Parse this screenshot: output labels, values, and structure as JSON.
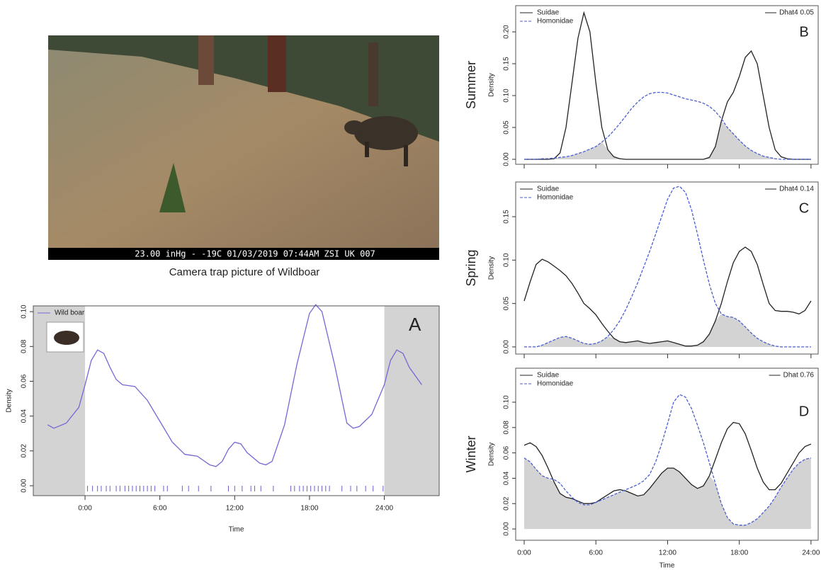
{
  "photo": {
    "overlay": "23.00 inHg - -19C  01/03/2019  07:44AM  ZSI UK 007",
    "caption": "Camera trap picture of Wildboar"
  },
  "chart_data": [
    {
      "type": "line",
      "panel": "A",
      "xlabel": "Time",
      "ylabel": "Density",
      "shade_outside": true,
      "xlim": [
        -4.15,
        28.4
      ],
      "ylim": [
        -0.0057,
        0.1033
      ],
      "xticks": [
        {
          "value": 0,
          "label": "0:00"
        },
        {
          "value": 6,
          "label": "6:00"
        },
        {
          "value": 12,
          "label": "12:00"
        },
        {
          "value": 18,
          "label": "18:00"
        },
        {
          "value": 24,
          "label": "24:00"
        }
      ],
      "yticks": [
        {
          "value": 0,
          "label": "0.00"
        },
        {
          "value": 0.02,
          "label": "0.02"
        },
        {
          "value": 0.04,
          "label": "0.04"
        },
        {
          "value": 0.06,
          "label": "0.06"
        },
        {
          "value": 0.08,
          "label": "0.08"
        },
        {
          "value": 0.1,
          "label": "0.10"
        }
      ],
      "x": [
        -3,
        -2.5,
        -1.5,
        -0.5,
        0,
        0.5,
        1,
        1.5,
        2,
        2.5,
        3,
        4,
        5,
        6,
        7,
        8,
        9,
        10,
        10.5,
        11,
        11.5,
        12,
        12.5,
        13,
        14,
        14.5,
        15,
        16,
        17,
        18,
        18.5,
        19,
        20,
        21,
        21.5,
        22,
        23,
        24,
        24.5,
        25,
        25.5,
        26,
        27
      ],
      "series": [
        {
          "name": "Wild boar",
          "color": "#7468d4",
          "linestyle": "solid",
          "values": [
            0.035,
            0.033,
            0.036,
            0.045,
            0.058,
            0.072,
            0.078,
            0.076,
            0.068,
            0.061,
            0.058,
            0.057,
            0.049,
            0.037,
            0.025,
            0.018,
            0.017,
            0.012,
            0.011,
            0.014,
            0.021,
            0.025,
            0.024,
            0.019,
            0.013,
            0.012,
            0.014,
            0.035,
            0.07,
            0.099,
            0.104,
            0.1,
            0.07,
            0.036,
            0.033,
            0.034,
            0.041,
            0.058,
            0.072,
            0.078,
            0.076,
            0.068,
            0.058
          ]
        }
      ],
      "rug": [
        0.2,
        0.6,
        1.0,
        1.3,
        1.7,
        2.0,
        2.5,
        2.8,
        3.2,
        3.5,
        3.8,
        4.1,
        4.4,
        4.7,
        5.0,
        5.3,
        5.6,
        6.3,
        6.6,
        7.8,
        8.3,
        9.1,
        10.1,
        11.5,
        12.0,
        12.6,
        13.3,
        13.6,
        14.1,
        15.1,
        16.5,
        16.8,
        17.2,
        17.5,
        17.8,
        18.1,
        18.4,
        18.7,
        19.0,
        19.3,
        19.6,
        20.6,
        21.3,
        21.8,
        22.5,
        23.1,
        23.9
      ]
    },
    {
      "type": "line",
      "panel": "B",
      "row_label": "Summer",
      "ylabel": "Density",
      "annotation": "Dhat4 0.05",
      "overlap_shading": true,
      "xlim": [
        -0.71,
        24.6
      ],
      "ylim": [
        -0.0078,
        0.2411
      ],
      "xticks": [
        0,
        6,
        12,
        18,
        24
      ],
      "yticks": [
        {
          "value": 0,
          "label": "0.00"
        },
        {
          "value": 0.05,
          "label": "0.05"
        },
        {
          "value": 0.1,
          "label": "0.10"
        },
        {
          "value": 0.15,
          "label": "0.15"
        },
        {
          "value": 0.2,
          "label": "0.20"
        }
      ],
      "x": [
        0,
        0.5,
        1,
        1.5,
        2,
        2.5,
        3,
        3.5,
        4,
        4.5,
        5,
        5.5,
        6,
        6.5,
        7,
        7.5,
        8,
        8.5,
        9,
        9.5,
        10,
        10.5,
        11,
        11.5,
        12,
        12.5,
        13,
        13.5,
        14,
        14.5,
        15,
        15.5,
        16,
        16.5,
        17,
        17.5,
        18,
        18.5,
        19,
        19.5,
        20,
        20.5,
        21,
        21.5,
        22,
        22.5,
        23,
        23.5,
        24
      ],
      "series": [
        {
          "name": "Suidae",
          "color": "#222222",
          "linestyle": "solid",
          "values": [
            0,
            0,
            0,
            0,
            0,
            0.001,
            0.01,
            0.05,
            0.12,
            0.19,
            0.23,
            0.2,
            0.12,
            0.05,
            0.015,
            0.004,
            0.001,
            0,
            0,
            0,
            0,
            0,
            0,
            0,
            0,
            0,
            0,
            0,
            0,
            0,
            0,
            0.003,
            0.02,
            0.06,
            0.09,
            0.105,
            0.13,
            0.16,
            0.17,
            0.15,
            0.1,
            0.05,
            0.015,
            0.004,
            0.001,
            0,
            0,
            0,
            0
          ]
        },
        {
          "name": "Homonidae",
          "color": "#4a5fd0",
          "linestyle": "dashed",
          "values": [
            0,
            0,
            0,
            0.001,
            0.001,
            0.002,
            0.003,
            0.004,
            0.006,
            0.009,
            0.012,
            0.016,
            0.02,
            0.027,
            0.035,
            0.045,
            0.056,
            0.068,
            0.08,
            0.09,
            0.098,
            0.103,
            0.105,
            0.105,
            0.104,
            0.101,
            0.098,
            0.095,
            0.093,
            0.091,
            0.088,
            0.083,
            0.075,
            0.064,
            0.05,
            0.04,
            0.03,
            0.021,
            0.014,
            0.009,
            0.005,
            0.003,
            0.001,
            0,
            0,
            0,
            0,
            0,
            0
          ]
        }
      ]
    },
    {
      "type": "line",
      "panel": "C",
      "row_label": "Spring",
      "ylabel": "Density",
      "annotation": "Dhat4 0.14",
      "overlap_shading": true,
      "xlim": [
        -0.71,
        24.6
      ],
      "ylim": [
        -0.0082,
        0.19
      ],
      "xticks": [
        0,
        6,
        12,
        18,
        24
      ],
      "yticks": [
        {
          "value": 0,
          "label": "0.00"
        },
        {
          "value": 0.05,
          "label": "0.05"
        },
        {
          "value": 0.1,
          "label": "0.10"
        },
        {
          "value": 0.15,
          "label": "0.15"
        }
      ],
      "x": [
        0,
        0.5,
        1,
        1.5,
        2,
        2.5,
        3,
        3.5,
        4,
        4.5,
        5,
        5.5,
        6,
        6.5,
        7,
        7.5,
        8,
        8.5,
        9,
        9.5,
        10,
        10.5,
        11,
        11.5,
        12,
        12.5,
        13,
        13.5,
        14,
        14.5,
        15,
        15.5,
        16,
        16.5,
        17,
        17.5,
        18,
        18.5,
        19,
        19.5,
        20,
        20.5,
        21,
        21.5,
        22,
        22.5,
        23,
        23.5,
        24
      ],
      "series": [
        {
          "name": "Suidae",
          "color": "#222222",
          "linestyle": "solid",
          "values": [
            0.053,
            0.075,
            0.095,
            0.101,
            0.098,
            0.093,
            0.088,
            0.082,
            0.073,
            0.062,
            0.05,
            0.044,
            0.037,
            0.027,
            0.018,
            0.01,
            0.006,
            0.005,
            0.006,
            0.007,
            0.005,
            0.004,
            0.005,
            0.006,
            0.007,
            0.005,
            0.003,
            0.001,
            0.001,
            0.002,
            0.006,
            0.015,
            0.03,
            0.05,
            0.075,
            0.097,
            0.11,
            0.115,
            0.11,
            0.095,
            0.072,
            0.05,
            0.042,
            0.041,
            0.041,
            0.04,
            0.038,
            0.042,
            0.053
          ]
        },
        {
          "name": "Homonidae",
          "color": "#4a5fd0",
          "linestyle": "dashed",
          "values": [
            0,
            0,
            0,
            0.002,
            0.005,
            0.008,
            0.011,
            0.012,
            0.01,
            0.007,
            0.004,
            0.003,
            0.004,
            0.007,
            0.012,
            0.02,
            0.03,
            0.043,
            0.058,
            0.074,
            0.092,
            0.11,
            0.13,
            0.15,
            0.17,
            0.183,
            0.185,
            0.178,
            0.158,
            0.13,
            0.1,
            0.072,
            0.05,
            0.038,
            0.035,
            0.034,
            0.03,
            0.023,
            0.016,
            0.01,
            0.006,
            0.003,
            0.001,
            0,
            0,
            0,
            0,
            0,
            0
          ]
        }
      ]
    },
    {
      "type": "line",
      "panel": "D",
      "row_label": "Winter",
      "ylabel": "Density",
      "xlabel": "Time",
      "annotation": "Dhat 0.76",
      "overlap_shading": true,
      "xlim": [
        -0.71,
        24.6
      ],
      "ylim": [
        -0.0089,
        0.1268
      ],
      "xticks": [
        {
          "value": 0,
          "label": "0:00"
        },
        {
          "value": 6,
          "label": "6:00"
        },
        {
          "value": 12,
          "label": "12:00"
        },
        {
          "value": 18,
          "label": "18:00"
        },
        {
          "value": 24,
          "label": "24:00"
        }
      ],
      "yticks": [
        {
          "value": 0,
          "label": "0.00"
        },
        {
          "value": 0.02,
          "label": "0.02"
        },
        {
          "value": 0.04,
          "label": "0.04"
        },
        {
          "value": 0.06,
          "label": "0.06"
        },
        {
          "value": 0.08,
          "label": "0.08"
        },
        {
          "value": 0.1,
          "label": "0.10"
        }
      ],
      "x": [
        0,
        0.5,
        1,
        1.5,
        2,
        2.5,
        3,
        3.5,
        4,
        4.5,
        5,
        5.5,
        6,
        6.5,
        7,
        7.5,
        8,
        8.5,
        9,
        9.5,
        10,
        10.5,
        11,
        11.5,
        12,
        12.5,
        13,
        13.5,
        14,
        14.5,
        15,
        15.5,
        16,
        16.5,
        17,
        17.5,
        18,
        18.5,
        19,
        19.5,
        20,
        20.5,
        21,
        21.5,
        22,
        22.5,
        23,
        23.5,
        24
      ],
      "series": [
        {
          "name": "Suidae",
          "color": "#222222",
          "linestyle": "solid",
          "values": [
            0.066,
            0.068,
            0.065,
            0.058,
            0.048,
            0.037,
            0.028,
            0.025,
            0.024,
            0.022,
            0.02,
            0.02,
            0.021,
            0.024,
            0.027,
            0.03,
            0.031,
            0.03,
            0.028,
            0.026,
            0.027,
            0.032,
            0.038,
            0.044,
            0.048,
            0.048,
            0.045,
            0.04,
            0.035,
            0.032,
            0.034,
            0.042,
            0.055,
            0.068,
            0.079,
            0.084,
            0.083,
            0.075,
            0.062,
            0.048,
            0.037,
            0.031,
            0.031,
            0.036,
            0.044,
            0.052,
            0.06,
            0.065,
            0.067
          ]
        },
        {
          "name": "Homonidae",
          "color": "#4a5fd0",
          "linestyle": "dashed",
          "values": [
            0.056,
            0.053,
            0.047,
            0.042,
            0.04,
            0.039,
            0.036,
            0.03,
            0.025,
            0.021,
            0.019,
            0.019,
            0.021,
            0.023,
            0.025,
            0.027,
            0.029,
            0.031,
            0.033,
            0.035,
            0.038,
            0.043,
            0.053,
            0.067,
            0.083,
            0.1,
            0.106,
            0.104,
            0.095,
            0.082,
            0.068,
            0.052,
            0.036,
            0.02,
            0.009,
            0.004,
            0.003,
            0.003,
            0.005,
            0.008,
            0.013,
            0.018,
            0.025,
            0.033,
            0.04,
            0.047,
            0.052,
            0.055,
            0.056
          ]
        }
      ]
    }
  ]
}
